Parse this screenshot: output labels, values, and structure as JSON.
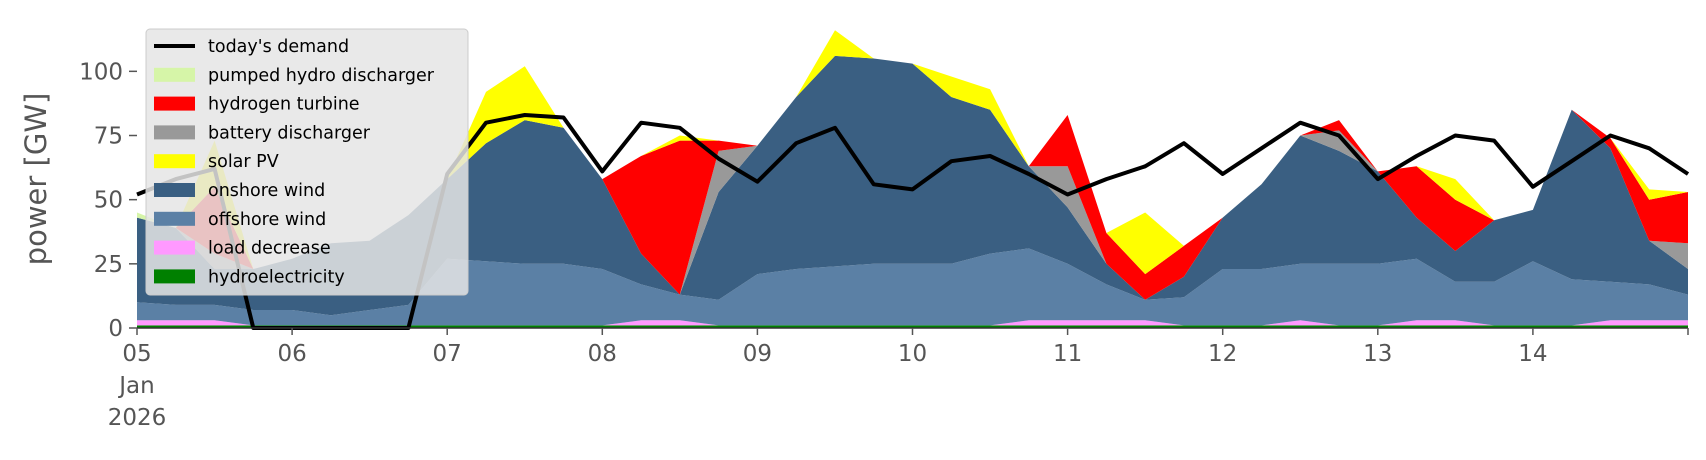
{
  "chart_data": {
    "type": "area",
    "title": "",
    "xlabel": "",
    "ylabel": "power [GW]",
    "ylim": [
      0,
      120
    ],
    "xlim": [
      "2026-01-05 00:00",
      "2026-01-15 00:00"
    ],
    "y_ticks": [
      0,
      25,
      50,
      75,
      100
    ],
    "x_ticks": [
      {
        "date": "2026-01-05",
        "lines": [
          "05",
          "Jan",
          "2026"
        ]
      },
      {
        "date": "2026-01-06",
        "lines": [
          "06"
        ]
      },
      {
        "date": "2026-01-07",
        "lines": [
          "07"
        ]
      },
      {
        "date": "2026-01-08",
        "lines": [
          "08"
        ]
      },
      {
        "date": "2026-01-09",
        "lines": [
          "09"
        ]
      },
      {
        "date": "2026-01-10",
        "lines": [
          "10"
        ]
      },
      {
        "date": "2026-01-11",
        "lines": [
          "11"
        ]
      },
      {
        "date": "2026-01-12",
        "lines": [
          "12"
        ]
      },
      {
        "date": "2026-01-13",
        "lines": [
          "13"
        ]
      },
      {
        "date": "2026-01-14",
        "lines": [
          "14"
        ]
      }
    ],
    "grid": false,
    "legend_position": "upper-left",
    "x": [
      "2026-01-05 00:00",
      "2026-01-05 06:00",
      "2026-01-05 12:00",
      "2026-01-05 18:00",
      "2026-01-06 00:00",
      "2026-01-06 06:00",
      "2026-01-06 12:00",
      "2026-01-06 18:00",
      "2026-01-07 00:00",
      "2026-01-07 06:00",
      "2026-01-07 12:00",
      "2026-01-07 18:00",
      "2026-01-08 00:00",
      "2026-01-08 06:00",
      "2026-01-08 12:00",
      "2026-01-08 18:00",
      "2026-01-09 00:00",
      "2026-01-09 06:00",
      "2026-01-09 12:00",
      "2026-01-09 18:00",
      "2026-01-10 00:00",
      "2026-01-10 06:00",
      "2026-01-10 12:00",
      "2026-01-10 18:00",
      "2026-01-11 00:00",
      "2026-01-11 06:00",
      "2026-01-11 12:00",
      "2026-01-11 18:00",
      "2026-01-12 00:00",
      "2026-01-12 06:00",
      "2026-01-12 12:00",
      "2026-01-12 18:00",
      "2026-01-13 00:00",
      "2026-01-13 06:00",
      "2026-01-13 12:00",
      "2026-01-13 18:00",
      "2026-01-14 00:00",
      "2026-01-14 06:00",
      "2026-01-14 12:00",
      "2026-01-14 18:00",
      "2026-01-15 00:00"
    ],
    "series": [
      {
        "name": "hydroelectricity",
        "kind": "area",
        "color": "#008000",
        "values": [
          1,
          1,
          1,
          1,
          1,
          1,
          1,
          1,
          1,
          1,
          1,
          1,
          1,
          1,
          1,
          1,
          1,
          1,
          1,
          1,
          1,
          1,
          1,
          1,
          1,
          1,
          1,
          1,
          1,
          1,
          1,
          1,
          1,
          1,
          1,
          1,
          1,
          1,
          1,
          1,
          1
        ]
      },
      {
        "name": "load decrease",
        "kind": "area",
        "color": "#ff99ff",
        "values": [
          2,
          2,
          2,
          0,
          0,
          0,
          0,
          0,
          0,
          0,
          0,
          0,
          0,
          2,
          2,
          0,
          0,
          0,
          0,
          0,
          0,
          0,
          0,
          2,
          2,
          2,
          2,
          0,
          0,
          0,
          2,
          0,
          0,
          2,
          2,
          0,
          0,
          0,
          2,
          2,
          2
        ]
      },
      {
        "name": "offshore wind",
        "kind": "area",
        "color": "#5b80a5",
        "values": [
          7,
          6,
          6,
          6,
          6,
          4,
          6,
          8,
          26,
          25,
          24,
          24,
          22,
          14,
          10,
          10,
          20,
          22,
          23,
          24,
          24,
          24,
          28,
          28,
          22,
          14,
          8,
          11,
          22,
          22,
          22,
          24,
          24,
          24,
          15,
          17,
          25,
          18,
          15,
          14,
          10
        ]
      },
      {
        "name": "onshore wind",
        "kind": "area",
        "color": "#3a5f82",
        "values": [
          33,
          30,
          14,
          16,
          20,
          28,
          27,
          35,
          31,
          46,
          56,
          53,
          35,
          12,
          0,
          42,
          50,
          67,
          82,
          80,
          78,
          65,
          56,
          32,
          22,
          8,
          0,
          8,
          20,
          33,
          50,
          44,
          36,
          16,
          12,
          24,
          20,
          66,
          52,
          17,
          10
        ]
      },
      {
        "name": "battery discharger",
        "kind": "area",
        "color": "#999999",
        "values": [
          0,
          0,
          6,
          0,
          0,
          0,
          0,
          0,
          0,
          0,
          0,
          0,
          0,
          0,
          0,
          16,
          0,
          0,
          0,
          0,
          0,
          0,
          0,
          0,
          16,
          0,
          0,
          0,
          0,
          0,
          0,
          8,
          0,
          0,
          0,
          0,
          0,
          0,
          0,
          0,
          10
        ]
      },
      {
        "name": "hydrogen turbine",
        "kind": "area",
        "color": "#ff0000",
        "values": [
          0,
          0,
          26,
          0,
          0,
          0,
          0,
          0,
          0,
          0,
          0,
          0,
          0,
          38,
          60,
          4,
          0,
          0,
          0,
          0,
          0,
          0,
          0,
          0,
          20,
          12,
          10,
          12,
          0,
          0,
          0,
          4,
          0,
          20,
          20,
          0,
          0,
          0,
          4,
          16,
          20
        ]
      },
      {
        "name": "solar PV",
        "kind": "area",
        "color": "#ffff00",
        "values": [
          0,
          0,
          18,
          0,
          0,
          0,
          0,
          0,
          0,
          20,
          21,
          0,
          0,
          0,
          2,
          0,
          0,
          0,
          10,
          0,
          0,
          8,
          8,
          0,
          0,
          0,
          24,
          0,
          0,
          0,
          0,
          0,
          0,
          0,
          8,
          0,
          0,
          0,
          0,
          4,
          0
        ]
      },
      {
        "name": "pumped hydro discharger",
        "kind": "area",
        "color": "#d6f5a8",
        "values": [
          2,
          0,
          0,
          0,
          0,
          0,
          0,
          0,
          0,
          0,
          0,
          0,
          0,
          0,
          0,
          0,
          0,
          0,
          0,
          0,
          0,
          0,
          0,
          0,
          0,
          0,
          0,
          0,
          0,
          0,
          0,
          0,
          0,
          0,
          0,
          0,
          0,
          0,
          0,
          0,
          0
        ]
      },
      {
        "name": "today's demand",
        "kind": "line",
        "color": "#000000",
        "values": [
          52,
          58,
          62,
          0,
          0,
          0,
          0,
          0,
          60,
          80,
          83,
          82,
          61,
          80,
          78,
          66,
          57,
          72,
          78,
          56,
          54,
          65,
          67,
          60,
          52,
          58,
          63,
          72,
          60,
          70,
          80,
          75,
          58,
          67,
          75,
          73,
          55,
          65,
          75,
          70,
          60
        ]
      }
    ]
  }
}
